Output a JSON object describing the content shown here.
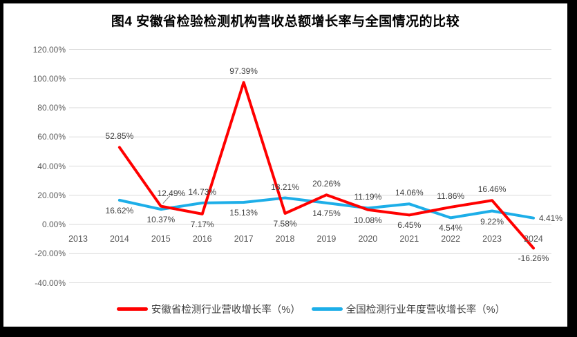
{
  "title": "图4  安徽省检验检测机构营收总额增长率与全国情况的比较",
  "frame": {
    "border_color": "#000000",
    "background": "#ffffff"
  },
  "colors": {
    "gridline": "#d9d9d9",
    "axis_text": "#595959",
    "data_label_text": "#404040",
    "leader_line": "#8c8c8c",
    "series_anhui": "#ff0000",
    "series_national": "#1daee8"
  },
  "chart_data": {
    "type": "line",
    "title": "图4  安徽省检验检测机构营收总额增长率与全国情况的比较",
    "xlabel": "",
    "ylabel": "",
    "grid": true,
    "legend_position": "bottom",
    "categories": [
      "2013",
      "2014",
      "2015",
      "2016",
      "2017",
      "2018",
      "2019",
      "2020",
      "2021",
      "2022",
      "2023",
      "2024"
    ],
    "y_axis": {
      "min": -40,
      "max": 120,
      "step": 20,
      "tick_labels": [
        "120.00%",
        "100.00%",
        "80.00%",
        "60.00%",
        "40.00%",
        "20.00%",
        "0.00%",
        "-20.00%",
        "-40.00%"
      ]
    },
    "series": [
      {
        "key": "anhui",
        "name": "安徽省检测行业营收增长率（%）",
        "color": "#ff0000",
        "values": [
          null,
          52.85,
          12.49,
          7.17,
          97.39,
          7.58,
          20.26,
          10.08,
          6.45,
          11.86,
          16.46,
          -16.26
        ],
        "labels": [
          null,
          "52.85%",
          "12.49%",
          "7.17%",
          "97.39%",
          "7.58%",
          "20.26%",
          "10.08%",
          "6.45%",
          "11.86%",
          "16.46%",
          "-16.26%"
        ],
        "label_positions": [
          null,
          "above",
          "above-leader",
          "below",
          "above",
          "below",
          "above",
          "below",
          "below",
          "above",
          "above",
          "below"
        ]
      },
      {
        "key": "national",
        "name": "全国检测行业年度营收增长率（%）",
        "color": "#1daee8",
        "values": [
          null,
          16.62,
          10.37,
          14.73,
          15.13,
          18.21,
          14.75,
          11.19,
          14.06,
          4.54,
          9.22,
          4.41
        ],
        "labels": [
          null,
          "16.62%",
          "10.37%",
          "14.73%",
          "15.13%",
          "18.21%",
          "14.75%",
          "11.19%",
          "14.06%",
          "4.54%",
          "9.22%",
          "4.41%"
        ],
        "label_positions": [
          null,
          "below",
          "below",
          "above",
          "below",
          "above",
          "below",
          "above",
          "above",
          "below",
          "below",
          "right"
        ]
      }
    ],
    "leader_lines": [
      {
        "series": 0,
        "index": 2
      }
    ]
  }
}
